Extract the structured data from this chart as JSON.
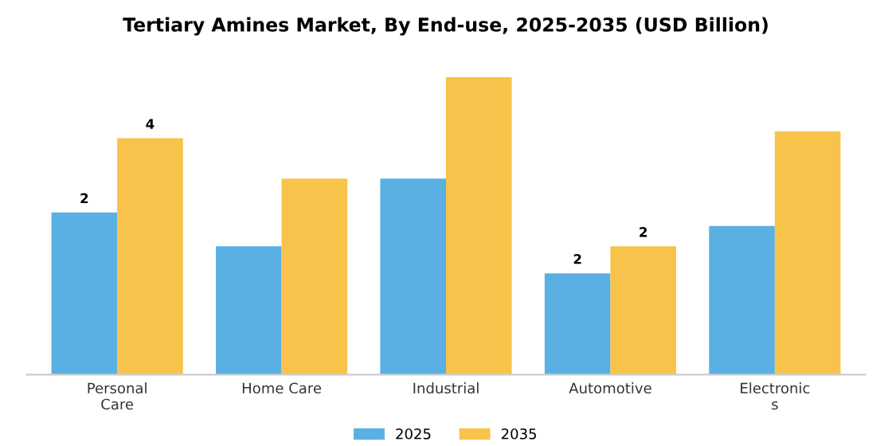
{
  "chart_data": {
    "type": "bar",
    "title": "Tertiary Amines Market, By End-use, 2025-2035 (USD Billion)",
    "categories": [
      "Personal Care",
      "Home Care",
      "Industrial",
      "Automotive",
      "Electronics"
    ],
    "series": [
      {
        "name": "2025",
        "color": "#5aafe3",
        "values": [
          2.4,
          1.9,
          2.9,
          1.5,
          2.2
        ],
        "value_labels": [
          "2",
          null,
          null,
          "2",
          null
        ]
      },
      {
        "name": "2035",
        "color": "#f7c34a",
        "values": [
          3.5,
          2.9,
          4.4,
          1.9,
          3.6
        ],
        "value_labels": [
          "4",
          null,
          null,
          "2",
          null
        ]
      }
    ],
    "grid": false,
    "legend": "bottom"
  }
}
